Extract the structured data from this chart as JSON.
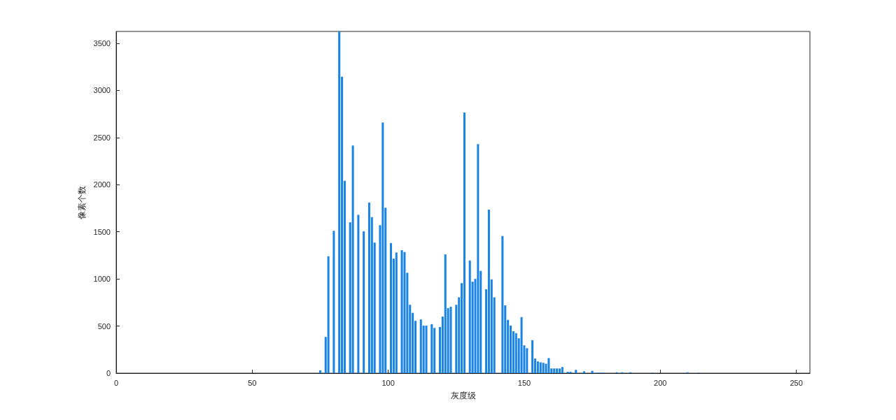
{
  "chart_data": {
    "type": "bar",
    "xlabel": "灰度级",
    "ylabel": "像素个数",
    "color": "#1a84e6",
    "x": [
      75,
      77,
      78,
      80,
      82,
      83,
      84,
      86,
      87,
      89,
      91,
      93,
      94,
      95,
      97,
      98,
      99,
      101,
      102,
      103,
      105,
      106,
      107,
      108,
      109,
      110,
      112,
      113,
      114,
      116,
      117,
      119,
      120,
      121,
      122,
      123,
      125,
      126,
      127,
      128,
      130,
      131,
      132,
      133,
      134,
      136,
      137,
      138,
      139,
      142,
      143,
      144,
      145,
      146,
      147,
      148,
      149,
      150,
      151,
      153,
      154,
      155,
      156,
      157,
      158,
      159,
      160,
      161,
      162,
      163,
      164,
      166,
      167,
      169,
      172,
      175,
      177,
      178,
      179,
      184,
      186,
      189,
      197,
      210,
      214
    ],
    "values": [
      30,
      385,
      1240,
      1510,
      3625,
      3145,
      2040,
      1600,
      2415,
      1680,
      1505,
      1810,
      1655,
      1385,
      1570,
      2660,
      1755,
      1380,
      1215,
      1280,
      1305,
      1285,
      1065,
      725,
      640,
      555,
      570,
      505,
      505,
      520,
      480,
      490,
      600,
      1260,
      690,
      705,
      725,
      805,
      955,
      2765,
      1195,
      970,
      1000,
      2430,
      1085,
      890,
      1735,
      995,
      805,
      1455,
      720,
      565,
      505,
      445,
      425,
      370,
      595,
      295,
      265,
      350,
      155,
      125,
      115,
      110,
      100,
      160,
      50,
      50,
      50,
      50,
      65,
      15,
      15,
      35,
      20,
      25,
      5,
      5,
      5,
      10,
      10,
      10,
      5,
      10,
      5
    ],
    "xlim": [
      0,
      255
    ],
    "xticks": [
      0,
      50,
      100,
      150,
      200,
      250
    ],
    "ylim": [
      0,
      3625
    ],
    "yticks": [
      0,
      500,
      1000,
      1500,
      2000,
      2500,
      3000,
      3500
    ],
    "grid": false
  }
}
